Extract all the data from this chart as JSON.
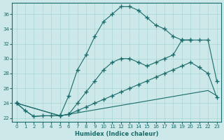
{
  "xlabel": "Humidex (Indice chaleur)",
  "bg_color": "#cce8e8",
  "line_color": "#1a6b6b",
  "grid_color": "#aad4d4",
  "xlim": [
    -0.5,
    23.5
  ],
  "ylim": [
    21.5,
    37.5
  ],
  "xticks": [
    0,
    1,
    2,
    3,
    4,
    5,
    6,
    7,
    8,
    9,
    10,
    11,
    12,
    13,
    14,
    15,
    16,
    17,
    18,
    19,
    20,
    21,
    22,
    23
  ],
  "yticks": [
    22,
    24,
    26,
    28,
    30,
    32,
    34,
    36
  ],
  "curve1_x": [
    0,
    1,
    2,
    3,
    4,
    5,
    6,
    7,
    8,
    9,
    10,
    11,
    12,
    13,
    14,
    15,
    16,
    17,
    18,
    19,
    20
  ],
  "curve1_y": [
    24.0,
    23.0,
    22.2,
    22.3,
    22.3,
    22.3,
    25.0,
    28.5,
    30.5,
    33.0,
    35.0,
    36.0,
    37.0,
    37.0,
    36.5,
    35.5,
    34.5,
    34.0,
    33.0,
    32.5,
    32.5
  ],
  "curve2_x": [
    0,
    5,
    6,
    7,
    8,
    9,
    10,
    11,
    12,
    13,
    14,
    15,
    16,
    17,
    18,
    19,
    20,
    21,
    22,
    23
  ],
  "curve2_y": [
    24.0,
    22.3,
    22.5,
    24.0,
    25.5,
    27.0,
    28.5,
    29.5,
    30.0,
    30.0,
    29.5,
    29.0,
    29.5,
    30.0,
    30.5,
    32.5,
    32.5,
    32.5,
    32.5,
    27.0
  ],
  "curve3_x": [
    0,
    5,
    6,
    7,
    8,
    9,
    10,
    11,
    12,
    13,
    14,
    15,
    16,
    17,
    18,
    19,
    20,
    21,
    22,
    23
  ],
  "curve3_y": [
    24.0,
    22.3,
    22.5,
    23.0,
    23.5,
    24.0,
    24.5,
    25.0,
    25.5,
    26.0,
    26.5,
    27.0,
    27.5,
    28.0,
    28.5,
    29.0,
    29.5,
    28.8,
    28.0,
    24.8
  ],
  "curve4_x": [
    0,
    1,
    2,
    3,
    4,
    5,
    6,
    7,
    8,
    9,
    10,
    11,
    12,
    13,
    14,
    15,
    16,
    17,
    18,
    19,
    20,
    21,
    22,
    23
  ],
  "curve4_y": [
    24.0,
    23.0,
    22.2,
    22.3,
    22.3,
    22.3,
    22.5,
    22.7,
    22.9,
    23.1,
    23.3,
    23.5,
    23.7,
    23.9,
    24.1,
    24.3,
    24.5,
    24.7,
    24.9,
    25.1,
    25.3,
    25.5,
    25.7,
    25.0
  ]
}
